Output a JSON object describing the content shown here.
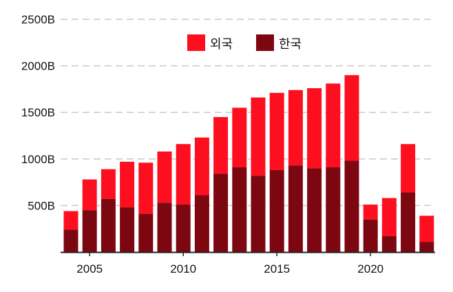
{
  "chart_data": {
    "type": "bar",
    "stacked": true,
    "x": [
      2004,
      2005,
      2006,
      2007,
      2008,
      2009,
      2010,
      2011,
      2012,
      2013,
      2014,
      2015,
      2016,
      2017,
      2018,
      2019,
      2020,
      2021,
      2022,
      2023
    ],
    "x_ticks": [
      "2005",
      "2010",
      "2015",
      "2020"
    ],
    "y_ticks": [
      "500B",
      "1000B",
      "1500B",
      "2000B",
      "2500B"
    ],
    "ylim": [
      0,
      2500
    ],
    "grid": true,
    "legend_position": "top-center",
    "series": [
      {
        "name": "한국",
        "color": "#7d0710",
        "values": [
          240,
          450,
          570,
          480,
          410,
          530,
          510,
          610,
          840,
          910,
          820,
          880,
          930,
          900,
          910,
          980,
          350,
          170,
          640,
          110
        ]
      },
      {
        "name": "외국",
        "color": "#fe0f20",
        "values": [
          200,
          330,
          320,
          490,
          550,
          550,
          650,
          620,
          610,
          640,
          840,
          830,
          810,
          860,
          900,
          920,
          160,
          410,
          520,
          280
        ]
      }
    ]
  }
}
